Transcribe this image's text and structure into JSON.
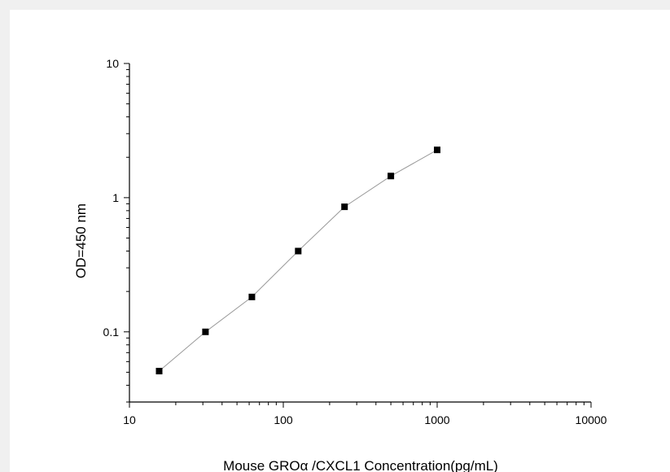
{
  "chart_data": {
    "type": "line",
    "title": "",
    "xlabel": "Mouse GROα /CXCL1  Concentration(pg/mL)",
    "ylabel": "OD=450 nm",
    "x_scale": "log",
    "y_scale": "log",
    "xlim": [
      10,
      10000
    ],
    "ylim": [
      0.03,
      10
    ],
    "x_ticks": [
      "10",
      "100",
      "1000",
      "10000"
    ],
    "y_ticks": [
      "0.1",
      "1",
      "10"
    ],
    "grid": false,
    "legend": "none",
    "series": [
      {
        "x": [
          15.6,
          31.2,
          62.5,
          125,
          250,
          500,
          1000
        ],
        "y": [
          0.051,
          0.1,
          0.182,
          0.4,
          0.855,
          1.45,
          2.27
        ]
      }
    ],
    "colors": {
      "line": "#999999",
      "marker": "#000000",
      "axis": "#000000"
    }
  }
}
